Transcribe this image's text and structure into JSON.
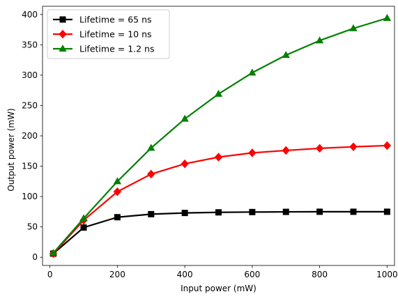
{
  "chart_data": {
    "type": "line",
    "xlabel": "Input power (mW)",
    "ylabel": "Output power (mW)",
    "xlim": [
      -22,
      1022
    ],
    "ylim": [
      -13.5,
      413.5
    ],
    "xticks": [
      0,
      200,
      400,
      600,
      800,
      1000
    ],
    "yticks": [
      0,
      50,
      100,
      150,
      200,
      250,
      300,
      350,
      400
    ],
    "grid": false,
    "legend_position": "top-left",
    "x": [
      10,
      100,
      200,
      300,
      400,
      500,
      600,
      700,
      800,
      900,
      1000
    ],
    "series": [
      {
        "name": "Lifetime = 65 ns",
        "color": "#000000",
        "marker": "square",
        "values": [
          6,
          49,
          66,
          71,
          73,
          74,
          74.5,
          74.8,
          75,
          75,
          75
        ]
      },
      {
        "name": "Lifetime = 10 ns",
        "color": "#ff0000",
        "marker": "diamond",
        "values": [
          6,
          61,
          108,
          137,
          154,
          165,
          172,
          176,
          179.5,
          182,
          184
        ]
      },
      {
        "name": "Lifetime = 1.2 ns",
        "color": "#008000",
        "marker": "triangle",
        "values": [
          7,
          64,
          125,
          180,
          228,
          269,
          304,
          333,
          357,
          377,
          394
        ]
      }
    ]
  }
}
